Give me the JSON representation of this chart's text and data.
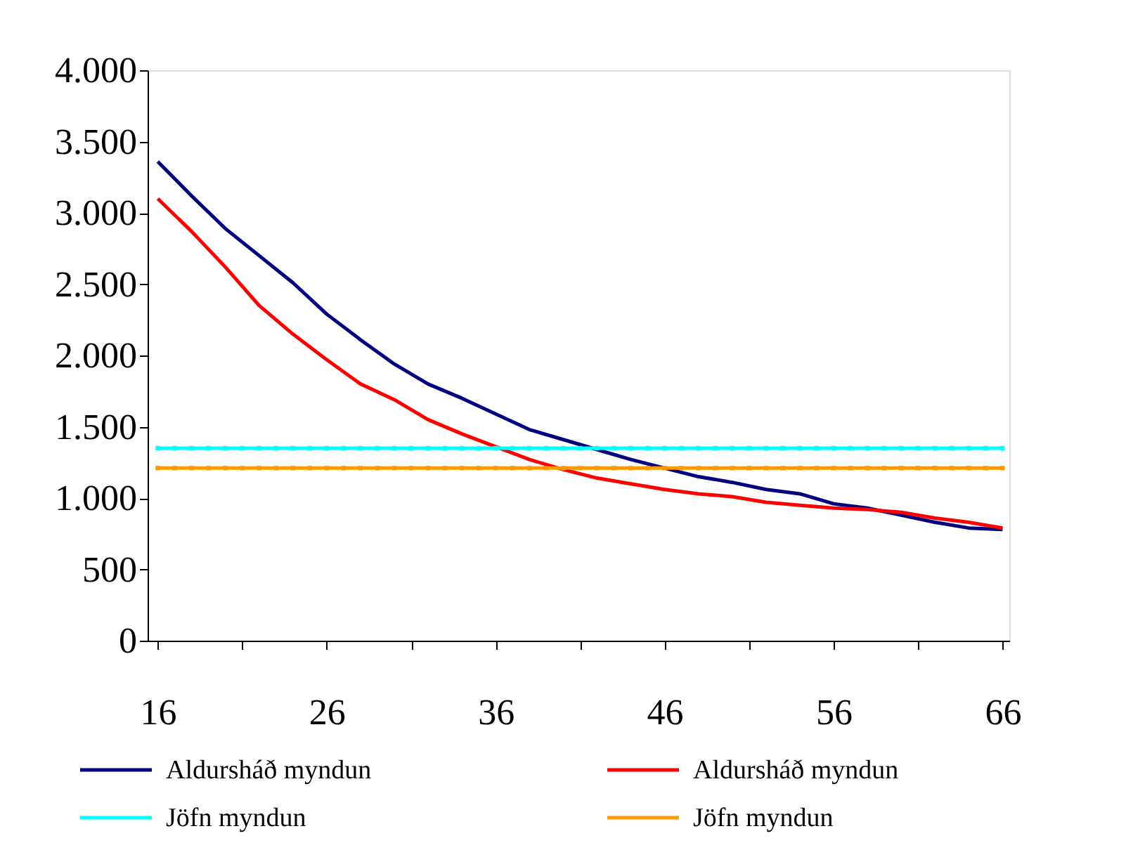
{
  "chart_data": {
    "type": "line",
    "x": [
      16,
      17,
      18,
      19,
      20,
      21,
      22,
      23,
      24,
      25,
      26,
      27,
      28,
      29,
      30,
      31,
      32,
      33,
      34,
      35,
      36,
      37,
      38,
      39,
      40,
      41,
      42,
      43,
      44,
      45,
      46,
      47,
      48,
      49,
      50,
      51,
      52,
      53,
      54,
      55,
      56,
      57,
      58,
      59,
      60,
      61,
      62,
      63,
      64,
      65,
      66
    ],
    "series": [
      {
        "name": "Aldursháð myndun",
        "color": "#000080",
        "x": [
          16,
          18,
          20,
          22,
          24,
          26,
          28,
          30,
          32,
          34,
          36,
          38,
          40,
          42,
          44,
          46,
          48,
          50,
          52,
          54,
          56,
          58,
          60,
          62,
          64,
          66
        ],
        "values": [
          3360,
          3120,
          2890,
          2700,
          2510,
          2290,
          2110,
          1940,
          1800,
          1700,
          1590,
          1480,
          1410,
          1340,
          1270,
          1210,
          1150,
          1110,
          1060,
          1030,
          960,
          930,
          880,
          830,
          790,
          780
        ]
      },
      {
        "name": "Aldursháð myndun",
        "color": "#ff0000",
        "x": [
          16,
          18,
          20,
          22,
          24,
          26,
          28,
          30,
          32,
          34,
          36,
          38,
          40,
          42,
          44,
          46,
          48,
          50,
          52,
          54,
          56,
          58,
          60,
          62,
          64,
          66
        ],
        "values": [
          3100,
          2870,
          2620,
          2350,
          2150,
          1970,
          1800,
          1690,
          1550,
          1450,
          1360,
          1270,
          1200,
          1140,
          1100,
          1060,
          1030,
          1010,
          970,
          950,
          930,
          920,
          900,
          860,
          830,
          790
        ]
      },
      {
        "name": "Jöfn myndun",
        "color": "#00ffff",
        "marker": "square",
        "values": [
          1350,
          1350,
          1350,
          1350,
          1350,
          1350,
          1350,
          1350,
          1350,
          1350,
          1350,
          1350,
          1350,
          1350,
          1350,
          1350,
          1350,
          1350,
          1350,
          1350,
          1350,
          1350,
          1350,
          1350,
          1350,
          1350,
          1350,
          1350,
          1350,
          1350,
          1350,
          1350,
          1350,
          1350,
          1350,
          1350,
          1350,
          1350,
          1350,
          1350,
          1350,
          1350,
          1350,
          1350,
          1350,
          1350,
          1350,
          1350,
          1350,
          1350,
          1350
        ]
      },
      {
        "name": "Jöfn myndun",
        "color": "#ff9900",
        "marker": "square",
        "values": [
          1210,
          1210,
          1210,
          1210,
          1210,
          1210,
          1210,
          1210,
          1210,
          1210,
          1210,
          1210,
          1210,
          1210,
          1210,
          1210,
          1210,
          1210,
          1210,
          1210,
          1210,
          1210,
          1210,
          1210,
          1210,
          1210,
          1210,
          1210,
          1210,
          1210,
          1210,
          1210,
          1210,
          1210,
          1210,
          1210,
          1210,
          1210,
          1210,
          1210,
          1210,
          1210,
          1210,
          1210,
          1210,
          1210,
          1210,
          1210,
          1210,
          1210,
          1210
        ]
      }
    ],
    "xlim": [
      15.4,
      66.4
    ],
    "xticks": [
      16,
      {
        "value": 21,
        "label": null
      },
      26,
      {
        "value": 31,
        "label": null
      },
      36,
      {
        "value": 41,
        "label": null
      },
      46,
      {
        "value": 51,
        "label": null
      },
      56,
      {
        "value": 61,
        "label": null
      },
      66
    ],
    "ylim": [
      0,
      4000
    ],
    "yticks": [
      0,
      500,
      {
        "value": 1000,
        "label": "1.000"
      },
      {
        "value": 1500,
        "label": "1.500"
      },
      {
        "value": 2000,
        "label": "2.000"
      },
      {
        "value": 2500,
        "label": "2.500"
      },
      {
        "value": 3000,
        "label": "3.000"
      },
      {
        "value": 3500,
        "label": "3.500"
      },
      {
        "value": 4000,
        "label": "4.000"
      }
    ],
    "grid": false,
    "legend": "bottom",
    "line_style": "solid"
  }
}
